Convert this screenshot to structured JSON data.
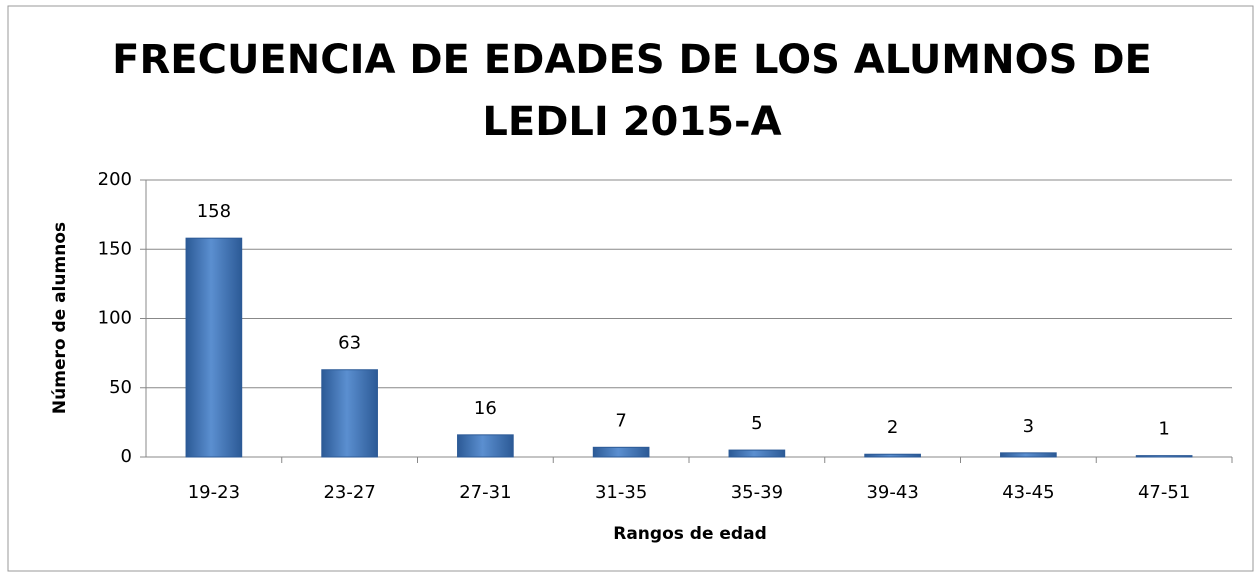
{
  "chart_data": {
    "type": "bar",
    "title": "FRECUENCIA DE EDADES DE LOS ALUMNOS DE",
    "subtitle": "LEDLI 2015-A",
    "xlabel": "Rangos de edad",
    "ylabel": "Número de alumnos",
    "categories": [
      "19-23",
      "23-27",
      "27-31",
      "31-35",
      "35-39",
      "39-43",
      "43-45",
      "47-51"
    ],
    "values": [
      158,
      63,
      16,
      7,
      5,
      2,
      3,
      1
    ],
    "color": "#4a7ebb",
    "ylim": [
      0,
      200
    ],
    "yticks": [
      0,
      50,
      100,
      150,
      200
    ],
    "grid": true
  }
}
